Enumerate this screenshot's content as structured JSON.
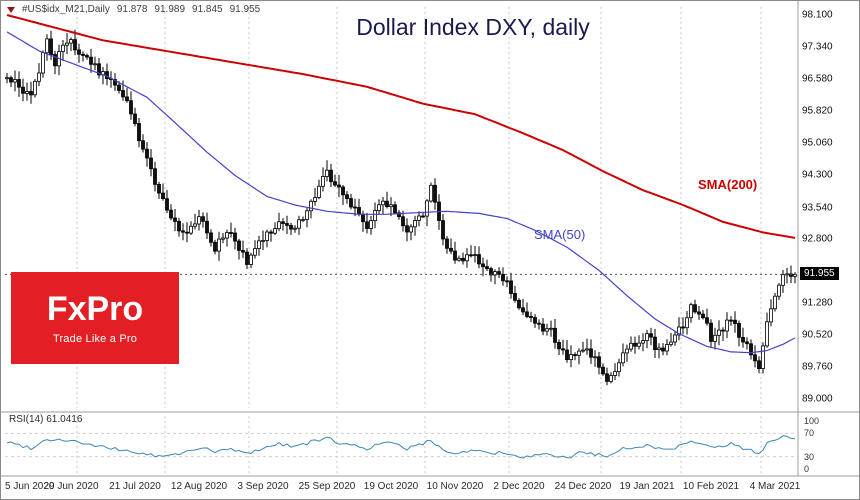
{
  "header": {
    "symbol": "#US$idx_M21,Daily",
    "open": "91.878",
    "high": "91.989",
    "low": "91.845",
    "close": "91.955"
  },
  "title": "Dollar Index DXY, daily",
  "overlays": {
    "sma200_label": "SMA(200)",
    "sma50_label": "SMA(50)"
  },
  "logo": {
    "name": "FxPro",
    "tagline": "Trade Like a Pro"
  },
  "rsi_pane": {
    "label": "RSI(14)",
    "value": "61.0416",
    "scale_labels": [
      "100",
      "70",
      "30",
      "0"
    ],
    "scale_values": [
      100,
      70,
      30,
      0
    ],
    "level_lines": [
      70,
      30
    ]
  },
  "price_axis": {
    "tick_labels": [
      "98.100",
      "97.340",
      "96.580",
      "95.820",
      "95.060",
      "94.300",
      "93.540",
      "92.800",
      "91.280",
      "90.520",
      "89.760",
      "89.000"
    ],
    "tick_values": [
      98.1,
      97.34,
      96.58,
      95.82,
      95.06,
      94.3,
      93.54,
      92.8,
      91.28,
      90.52,
      89.76,
      89.0
    ],
    "current_label": "91.955",
    "current_value": 91.955
  },
  "x_axis": {
    "labels": [
      "5 Jun 2020",
      "29 Jun 2020",
      "21 Jul 2020",
      "12 Aug 2020",
      "3 Sep 2020",
      "25 Sep 2020",
      "19 Oct 2020",
      "10 Nov 2020",
      "2 Dec 2020",
      "24 Dec 2020",
      "19 Jan 2021",
      "10 Feb 2021",
      "4 Mar 2021"
    ],
    "tick_days": [
      0,
      16,
      32,
      48,
      64,
      80,
      96,
      112,
      128,
      144,
      160,
      176,
      192
    ]
  },
  "colors": {
    "candle": "#000000",
    "candle_up_fill": "#ffffff",
    "candle_down_fill": "#111111",
    "sma200": "#cc0000",
    "sma50": "#4343c8",
    "rsi": "#3b87b8",
    "grid": "#c8c8c8",
    "price_line": "#555555",
    "separator": "#9b9b9b",
    "badge_bg": "#000000",
    "badge_text": "#ffffff",
    "logo_bg": "#e31e24",
    "title": "#1a1a4e"
  },
  "chart_data": {
    "type": "candlestick",
    "title": "Dollar Index DXY, daily",
    "timeframe": "daily",
    "bars_total": 198,
    "ylim": [
      88.79,
      98.29
    ],
    "month_separator_days": [
      18,
      40,
      61,
      83,
      105,
      126,
      149,
      169,
      189
    ],
    "close_anchors": [
      [
        0,
        96.7
      ],
      [
        3,
        96.35
      ],
      [
        6,
        96.1
      ],
      [
        8,
        96.8
      ],
      [
        10,
        97.45
      ],
      [
        12,
        97.0
      ],
      [
        14,
        97.35
      ],
      [
        16,
        97.45
      ],
      [
        18,
        97.2
      ],
      [
        22,
        96.85
      ],
      [
        26,
        96.5
      ],
      [
        30,
        96.0
      ],
      [
        34,
        94.9
      ],
      [
        38,
        93.8
      ],
      [
        41,
        93.4
      ],
      [
        44,
        92.9
      ],
      [
        48,
        93.35
      ],
      [
        52,
        92.6
      ],
      [
        56,
        93.0
      ],
      [
        60,
        92.25
      ],
      [
        64,
        92.8
      ],
      [
        68,
        93.25
      ],
      [
        72,
        93.05
      ],
      [
        76,
        93.65
      ],
      [
        80,
        94.35
      ],
      [
        83,
        93.95
      ],
      [
        86,
        93.6
      ],
      [
        90,
        93.1
      ],
      [
        93,
        93.55
      ],
      [
        96,
        93.65
      ],
      [
        100,
        92.9
      ],
      [
        104,
        93.4
      ],
      [
        106,
        94.0
      ],
      [
        108,
        93.3
      ],
      [
        110,
        92.5
      ],
      [
        113,
        92.3
      ],
      [
        116,
        92.5
      ],
      [
        120,
        92.1
      ],
      [
        124,
        91.9
      ],
      [
        128,
        91.1
      ],
      [
        132,
        90.8
      ],
      [
        136,
        90.6
      ],
      [
        140,
        89.9
      ],
      [
        144,
        90.25
      ],
      [
        147,
        89.9
      ],
      [
        150,
        89.45
      ],
      [
        152,
        89.55
      ],
      [
        154,
        90.1
      ],
      [
        157,
        90.35
      ],
      [
        160,
        90.55
      ],
      [
        163,
        90.15
      ],
      [
        166,
        90.3
      ],
      [
        168,
        90.6
      ],
      [
        171,
        91.2
      ],
      [
        174,
        91.0
      ],
      [
        176,
        90.45
      ],
      [
        179,
        90.6
      ],
      [
        181,
        90.95
      ],
      [
        184,
        90.35
      ],
      [
        186,
        90.15
      ],
      [
        188,
        89.8
      ],
      [
        190,
        90.9
      ],
      [
        192,
        91.4
      ],
      [
        194,
        92.0
      ],
      [
        196,
        91.85
      ],
      [
        197,
        91.955
      ]
    ],
    "series": [
      {
        "name": "SMA(200)",
        "color": "#cc0000",
        "anchors": [
          [
            0,
            98.1
          ],
          [
            24,
            97.5
          ],
          [
            49,
            97.1
          ],
          [
            74,
            96.7
          ],
          [
            90,
            96.4
          ],
          [
            104,
            96.0
          ],
          [
            117,
            95.75
          ],
          [
            129,
            95.3
          ],
          [
            139,
            94.9
          ],
          [
            149,
            94.4
          ],
          [
            159,
            93.95
          ],
          [
            169,
            93.6
          ],
          [
            179,
            93.2
          ],
          [
            189,
            92.95
          ],
          [
            197,
            92.82
          ]
        ]
      },
      {
        "name": "SMA(50)",
        "color": "#4343c8",
        "anchors": [
          [
            0,
            97.7
          ],
          [
            8,
            97.25
          ],
          [
            15,
            97.0
          ],
          [
            25,
            96.65
          ],
          [
            35,
            96.15
          ],
          [
            42,
            95.55
          ],
          [
            50,
            94.85
          ],
          [
            57,
            94.3
          ],
          [
            65,
            93.8
          ],
          [
            72,
            93.6
          ],
          [
            80,
            93.45
          ],
          [
            88,
            93.38
          ],
          [
            95,
            93.38
          ],
          [
            103,
            93.42
          ],
          [
            110,
            93.45
          ],
          [
            118,
            93.4
          ],
          [
            125,
            93.28
          ],
          [
            132,
            93.0
          ],
          [
            140,
            92.6
          ],
          [
            148,
            92.05
          ],
          [
            155,
            91.45
          ],
          [
            162,
            90.9
          ],
          [
            168,
            90.55
          ],
          [
            175,
            90.25
          ],
          [
            181,
            90.12
          ],
          [
            186,
            90.1
          ],
          [
            190,
            90.15
          ],
          [
            194,
            90.3
          ],
          [
            197,
            90.45
          ]
        ]
      },
      {
        "name": "RSI(14)",
        "pane": "rsi",
        "color": "#3b87b8",
        "range": [
          0,
          100
        ],
        "last_value": 61.0416,
        "anchors": [
          [
            0,
            55
          ],
          [
            6,
            45
          ],
          [
            10,
            60
          ],
          [
            16,
            58
          ],
          [
            22,
            48
          ],
          [
            30,
            40
          ],
          [
            38,
            30
          ],
          [
            41,
            32
          ],
          [
            44,
            36
          ],
          [
            48,
            46
          ],
          [
            52,
            38
          ],
          [
            56,
            43
          ],
          [
            60,
            35
          ],
          [
            64,
            45
          ],
          [
            68,
            52
          ],
          [
            72,
            48
          ],
          [
            76,
            55
          ],
          [
            80,
            62
          ],
          [
            83,
            54
          ],
          [
            86,
            50
          ],
          [
            90,
            44
          ],
          [
            93,
            52
          ],
          [
            96,
            53
          ],
          [
            100,
            44
          ],
          [
            104,
            52
          ],
          [
            106,
            58
          ],
          [
            108,
            48
          ],
          [
            110,
            38
          ],
          [
            113,
            36
          ],
          [
            116,
            41
          ],
          [
            120,
            37
          ],
          [
            124,
            36
          ],
          [
            128,
            28
          ],
          [
            132,
            31
          ],
          [
            136,
            33
          ],
          [
            140,
            27
          ],
          [
            144,
            39
          ],
          [
            147,
            34
          ],
          [
            150,
            30
          ],
          [
            152,
            33
          ],
          [
            154,
            43
          ],
          [
            157,
            47
          ],
          [
            160,
            50
          ],
          [
            163,
            44
          ],
          [
            166,
            43
          ],
          [
            168,
            48
          ],
          [
            171,
            58
          ],
          [
            174,
            54
          ],
          [
            176,
            45
          ],
          [
            179,
            47
          ],
          [
            181,
            52
          ],
          [
            184,
            44
          ],
          [
            186,
            42
          ],
          [
            188,
            35
          ],
          [
            190,
            53
          ],
          [
            192,
            58
          ],
          [
            194,
            67
          ],
          [
            196,
            62
          ],
          [
            197,
            61.04
          ]
        ]
      }
    ]
  }
}
